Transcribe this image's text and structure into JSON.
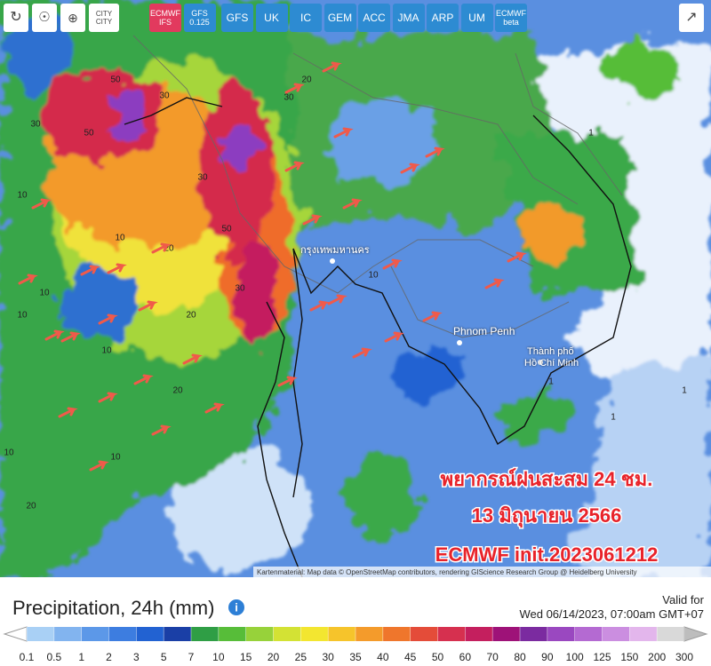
{
  "toolbar": {
    "city_button": [
      "CITY",
      "CITY"
    ],
    "models": [
      {
        "name": "ECMWF",
        "sub": "IFS"
      },
      {
        "name": "GFS",
        "sub": "0.125"
      },
      {
        "name": "GFS"
      },
      {
        "name": "UK"
      },
      {
        "name": "IC"
      },
      {
        "name": "GEM"
      },
      {
        "name": "ACC"
      },
      {
        "name": "JMA"
      },
      {
        "name": "ARP"
      },
      {
        "name": "UM"
      },
      {
        "name": "ECMWF",
        "sub": "beta"
      }
    ]
  },
  "map": {
    "places": [
      "กรุงเทพมหานคร",
      "Phnom Penh",
      "Thành phố",
      "Hồ Chí Minh"
    ],
    "contour_labels": [
      50,
      30,
      30,
      50,
      10,
      30,
      10,
      20,
      50,
      30,
      10,
      20,
      10,
      10,
      20,
      10,
      20,
      10,
      30,
      20,
      1,
      1,
      1,
      10,
      1
    ],
    "attribution": "Kartenmaterial: Map data © OpenStreetMap contributors, rendering GIScience Research Group @ Heidelberg University"
  },
  "overlay": {
    "lines": [
      "พยากรณ์ฝนสะสม 24 ชม.",
      "13 มิถุนายน 2566",
      "ECMWF init.2023061212"
    ]
  },
  "legend": {
    "title": "Precipitation, 24h (mm)",
    "valid_label": "Valid for",
    "valid_time": "Wed 06/14/2023, 07:00am GMT+07",
    "labels": [
      0.1,
      0.5,
      1,
      2,
      3,
      5,
      7,
      10,
      15,
      20,
      25,
      30,
      35,
      40,
      45,
      50,
      60,
      70,
      80,
      90,
      100,
      125,
      150,
      200,
      300
    ],
    "low_color": "#ffffff",
    "high_color": "#bdbdbd",
    "colors": [
      "#a9d0f5",
      "#82b4ef",
      "#5c98e8",
      "#3d7de0",
      "#2262d2",
      "#1a3fa6",
      "#2f9e45",
      "#57bd39",
      "#97d23a",
      "#d3e234",
      "#f3e630",
      "#f6c42b",
      "#f49b2b",
      "#ef762c",
      "#e44c39",
      "#d6304f",
      "#c41f5e",
      "#9e1278",
      "#7b2ba0",
      "#9a48c0",
      "#b46ad2",
      "#cb8ee0",
      "#e3b6ec",
      "#d9d9d9"
    ]
  }
}
